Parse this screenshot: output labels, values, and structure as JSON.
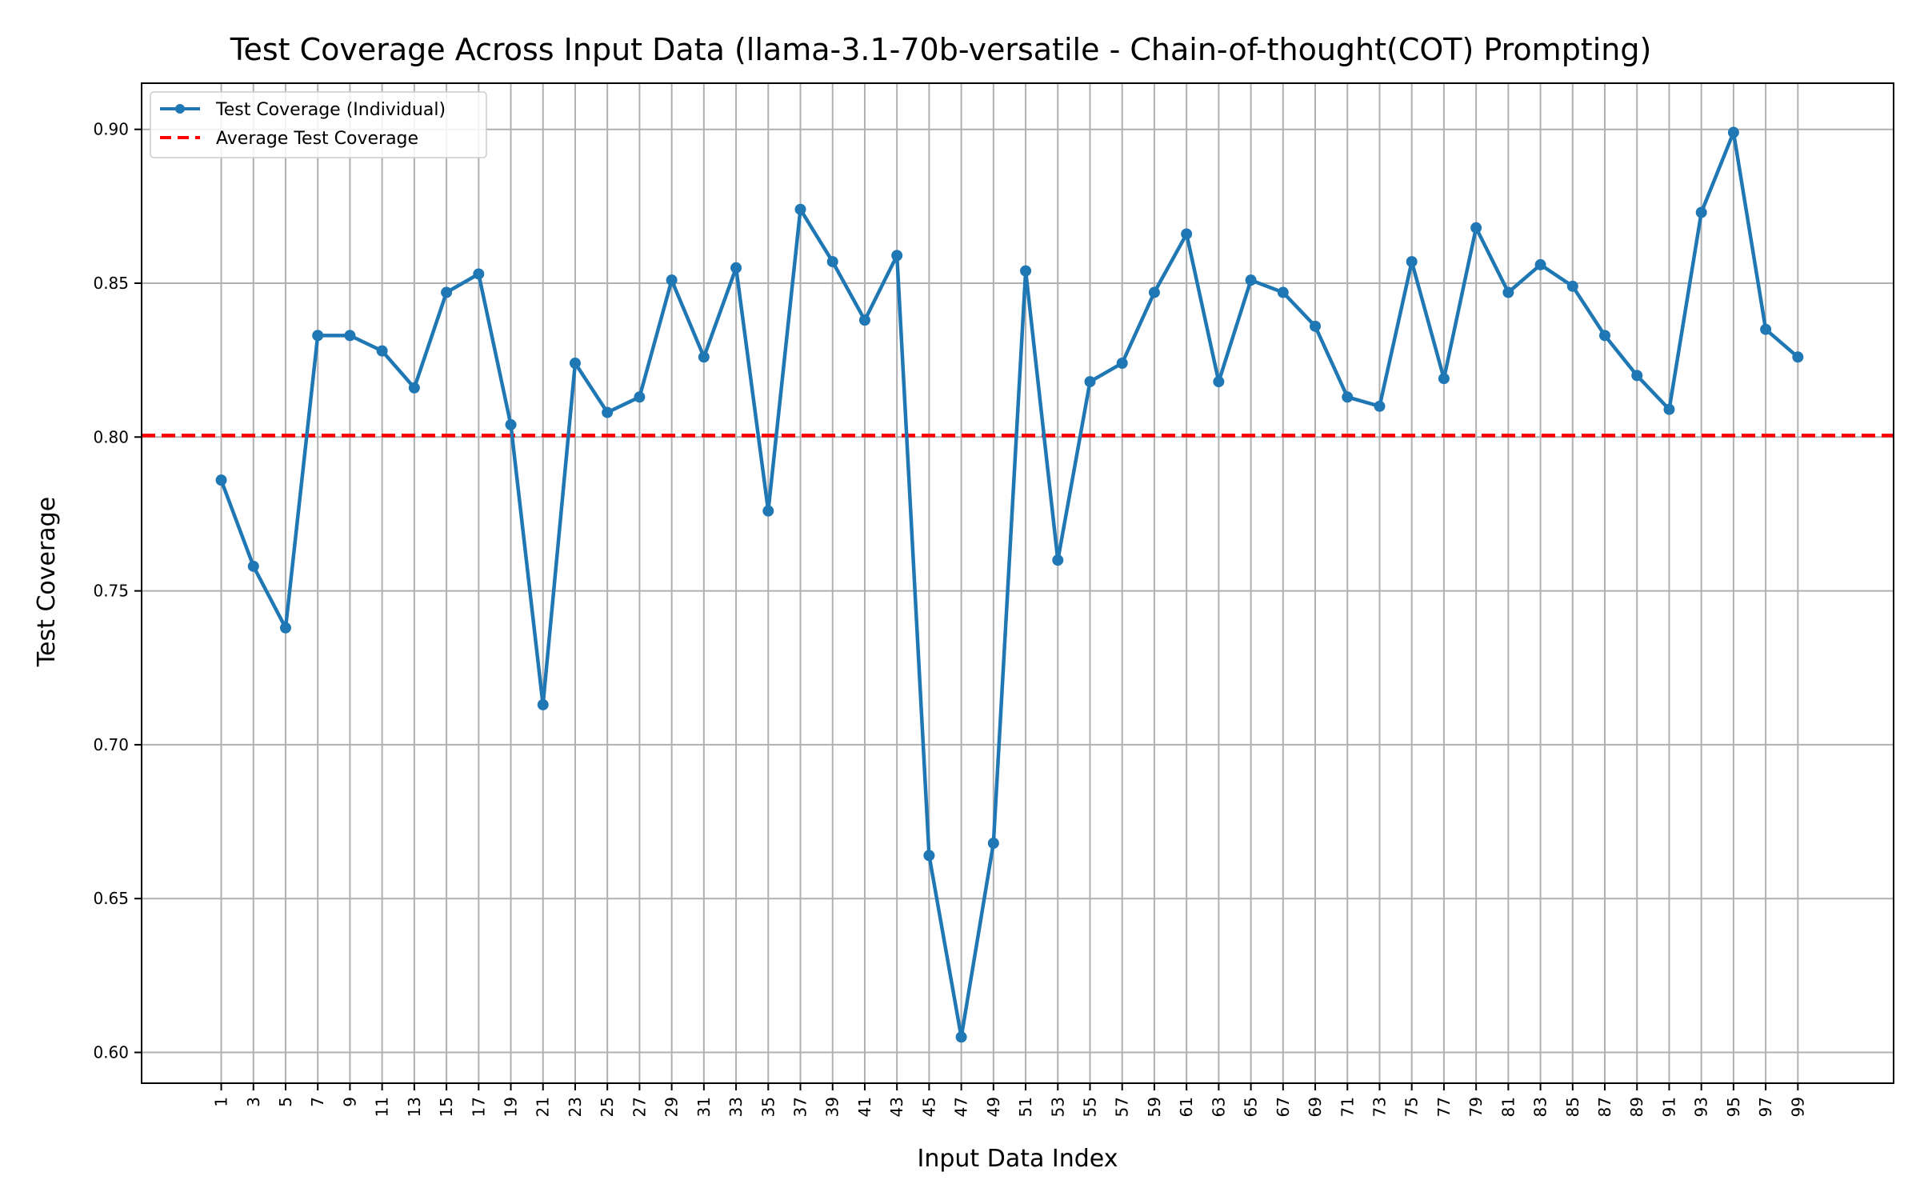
{
  "chart_data": {
    "type": "line",
    "title": "Test Coverage Across Input Data (llama-3.1-70b-versatile - Chain-of-thought(COT) Prompting)",
    "xlabel": "Input Data Index",
    "ylabel": "Test Coverage",
    "xlim": [
      -3.95,
      104.95
    ],
    "ylim": [
      0.59,
      0.915
    ],
    "x_ticks": [
      1,
      3,
      5,
      7,
      9,
      11,
      13,
      15,
      17,
      19,
      21,
      23,
      25,
      27,
      29,
      31,
      33,
      35,
      37,
      39,
      41,
      43,
      45,
      47,
      49,
      51,
      53,
      55,
      57,
      59,
      61,
      63,
      65,
      67,
      69,
      71,
      73,
      75,
      77,
      79,
      81,
      83,
      85,
      87,
      89,
      91,
      93,
      95,
      97,
      99
    ],
    "y_ticks": [
      0.6,
      0.65,
      0.7,
      0.75,
      0.8,
      0.85,
      0.9
    ],
    "y_tick_labels": [
      "0.60",
      "0.65",
      "0.70",
      "0.75",
      "0.80",
      "0.85",
      "0.90"
    ],
    "grid": true,
    "legend_position": "top-left",
    "series": [
      {
        "name": "Test Coverage (Individual)",
        "style": "line-with-markers",
        "color": "#1f77b4",
        "x": [
          1,
          3,
          5,
          7,
          9,
          11,
          13,
          15,
          17,
          19,
          21,
          23,
          25,
          27,
          29,
          31,
          33,
          35,
          37,
          39,
          41,
          43,
          45,
          47,
          49,
          51,
          53,
          55,
          57,
          59,
          61,
          63,
          65,
          67,
          69,
          71,
          73,
          75,
          77,
          79,
          81,
          83,
          85,
          87,
          89,
          91,
          93,
          95,
          97,
          99
        ],
        "values": [
          0.786,
          0.758,
          0.738,
          0.833,
          0.833,
          0.828,
          0.816,
          0.847,
          0.853,
          0.804,
          0.713,
          0.824,
          0.808,
          0.813,
          0.851,
          0.826,
          0.855,
          0.776,
          0.874,
          0.857,
          0.838,
          0.859,
          0.664,
          0.605,
          0.668,
          0.854,
          0.76,
          0.818,
          0.824,
          0.847,
          0.866,
          0.818,
          0.851,
          0.847,
          0.836,
          0.813,
          0.81,
          0.857,
          0.819,
          0.868,
          0.847,
          0.856,
          0.849,
          0.833,
          0.82,
          0.809,
          0.873,
          0.899,
          0.835,
          0.826
        ]
      },
      {
        "name": "Average Test Coverage",
        "style": "dashed-horizontal",
        "color": "#ff0000",
        "value": 0.8005
      }
    ]
  }
}
